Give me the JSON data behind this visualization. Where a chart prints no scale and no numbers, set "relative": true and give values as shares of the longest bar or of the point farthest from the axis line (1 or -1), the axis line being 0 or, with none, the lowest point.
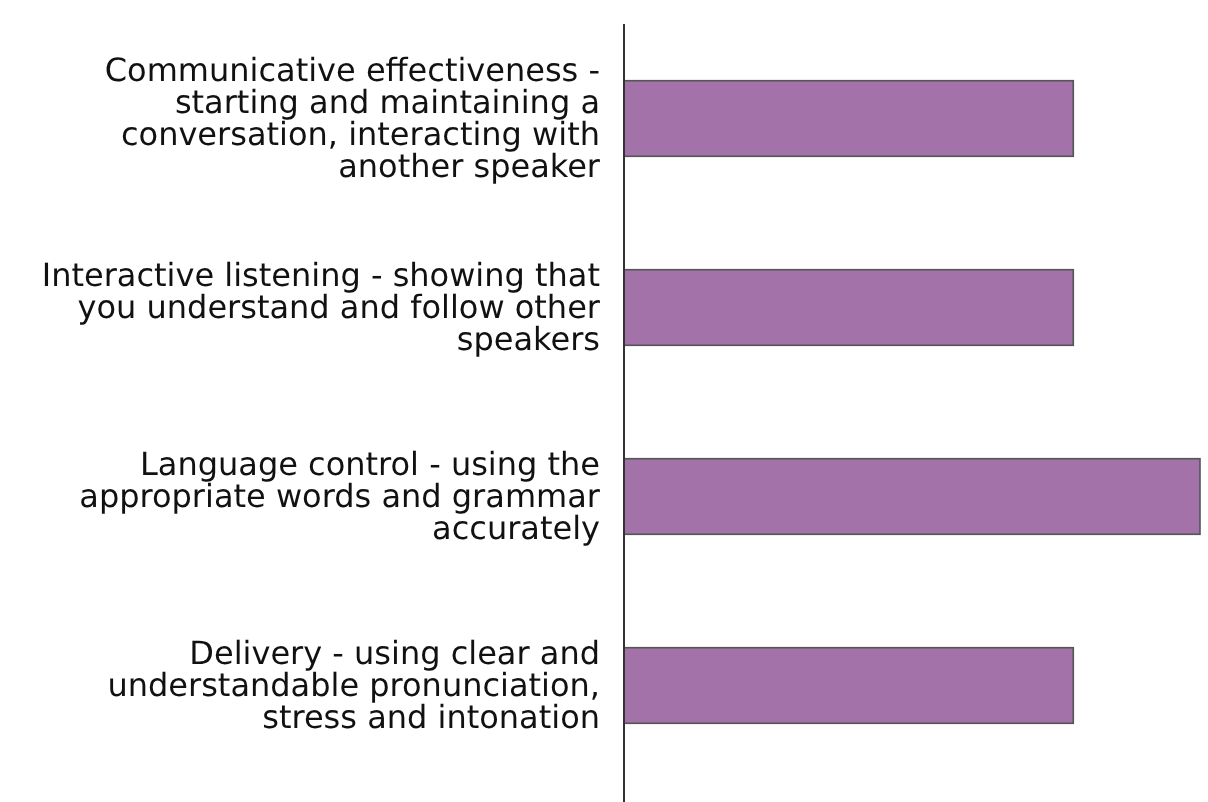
{
  "chart_data": {
    "type": "bar",
    "orientation": "horizontal",
    "relative": true,
    "categories": [
      "Communicative effectiveness - starting and maintaining a conversation, interacting with another speaker",
      "Interactive listening - showing that you understand and follow other speakers",
      "Language control - using the appropriate words and grammar accurately",
      "Delivery - using clear and understandable pronunciation, stress and intonation"
    ],
    "values": [
      0.78,
      0.78,
      1,
      0.78
    ],
    "color": "#a272a9"
  }
}
